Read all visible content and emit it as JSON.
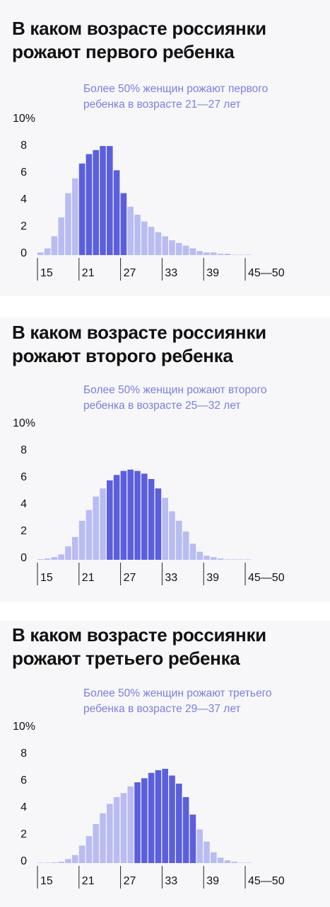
{
  "chart_data": [
    {
      "type": "bar",
      "title": "В каком возрасте россиянки\nрожают первого ребенка",
      "annotation": "Более 50% женщин рожают первого\nребенка в возрасте 21—27 лет",
      "ylim": [
        0,
        10
      ],
      "y_tick_labels": [
        "10%",
        "8",
        "6",
        "4",
        "2",
        "0"
      ],
      "x_tick_labels": [
        "15",
        "21",
        "27",
        "33",
        "39",
        "45—50"
      ],
      "ages": [
        "15",
        "16",
        "17",
        "18",
        "19",
        "20",
        "21",
        "22",
        "23",
        "24",
        "25",
        "26",
        "27",
        "28",
        "29",
        "30",
        "31",
        "32",
        "33",
        "34",
        "35",
        "36",
        "37",
        "38",
        "39",
        "40",
        "41",
        "42",
        "43",
        "44",
        "45—50"
      ],
      "values": [
        0.2,
        0.5,
        1.4,
        2.8,
        4.6,
        5.7,
        6.8,
        7.5,
        7.8,
        8.1,
        8.1,
        6.3,
        4.6,
        3.6,
        3.0,
        2.5,
        2.1,
        1.7,
        1.4,
        1.1,
        0.9,
        0.7,
        0.5,
        0.3,
        0.2,
        0.2,
        0.1,
        0.1,
        0.0,
        0.0,
        0.0
      ],
      "highlight_range": [
        "21",
        "27"
      ],
      "colors": {
        "base": "#b9bcf1",
        "highlight": "#5b5fdc"
      }
    },
    {
      "type": "bar",
      "title": "В каком возрасте россиянки\nрожают второго ребенка",
      "annotation": "Более 50% женщин рожают второго\nребенка в возрасте 25—32 лет",
      "ylim": [
        0,
        10
      ],
      "y_tick_labels": [
        "10%",
        "8",
        "6",
        "4",
        "2",
        "0"
      ],
      "x_tick_labels": [
        "15",
        "21",
        "27",
        "33",
        "39",
        "45—50"
      ],
      "ages": [
        "15",
        "16",
        "17",
        "18",
        "19",
        "20",
        "21",
        "22",
        "23",
        "24",
        "25",
        "26",
        "27",
        "28",
        "29",
        "30",
        "31",
        "32",
        "33",
        "34",
        "35",
        "36",
        "37",
        "38",
        "39",
        "40",
        "41",
        "42",
        "43",
        "44",
        "45—50"
      ],
      "values": [
        0.05,
        0.1,
        0.2,
        0.4,
        1.0,
        1.7,
        2.9,
        3.7,
        4.7,
        5.3,
        5.9,
        6.3,
        6.6,
        6.7,
        6.6,
        6.4,
        6.0,
        5.3,
        4.6,
        3.6,
        2.9,
        2.1,
        1.2,
        0.6,
        0.3,
        0.2,
        0.1,
        0.0,
        0.0,
        0.0,
        0.0
      ],
      "highlight_range": [
        "25",
        "32"
      ],
      "colors": {
        "base": "#b9bcf1",
        "highlight": "#5b5fdc"
      }
    },
    {
      "type": "bar",
      "title": "В каком возрасте россиянки\nрожают третьего ребенка",
      "annotation": "Более 50% женщин рожают третьего\nребенка в возрасте 29—37 лет",
      "ylim": [
        0,
        10
      ],
      "y_tick_labels": [
        "10%",
        "8",
        "6",
        "4",
        "2",
        "0"
      ],
      "x_tick_labels": [
        "15",
        "21",
        "27",
        "33",
        "39",
        "45—50"
      ],
      "ages": [
        "15",
        "16",
        "17",
        "18",
        "19",
        "20",
        "21",
        "22",
        "23",
        "24",
        "25",
        "26",
        "27",
        "28",
        "29",
        "30",
        "31",
        "32",
        "33",
        "34",
        "35",
        "36",
        "37",
        "38",
        "39",
        "40",
        "41",
        "42",
        "43",
        "44",
        "45—50"
      ],
      "values": [
        0.0,
        0.0,
        0.05,
        0.1,
        0.3,
        0.6,
        1.3,
        2.0,
        2.9,
        3.7,
        4.4,
        4.9,
        5.2,
        5.7,
        6.0,
        6.3,
        6.7,
        6.9,
        7.0,
        6.5,
        5.9,
        4.9,
        3.6,
        2.5,
        1.6,
        0.8,
        0.4,
        0.2,
        0.1,
        0.0,
        0.0
      ],
      "highlight_range": [
        "29",
        "37"
      ],
      "colors": {
        "base": "#b9bcf1",
        "highlight": "#5b5fdc"
      }
    }
  ]
}
